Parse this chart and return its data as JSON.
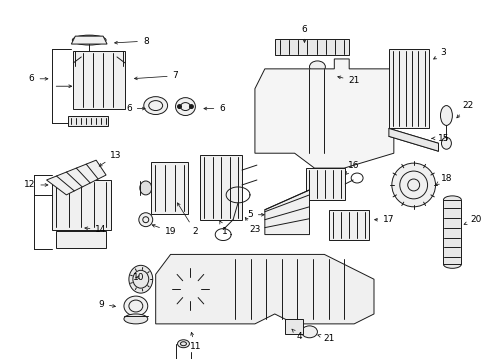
{
  "background_color": "#ffffff",
  "line_color": "#1a1a1a",
  "text_color": "#000000",
  "figsize": [
    4.89,
    3.6
  ],
  "dpi": 100,
  "lw": 0.7,
  "fs": 6.5
}
